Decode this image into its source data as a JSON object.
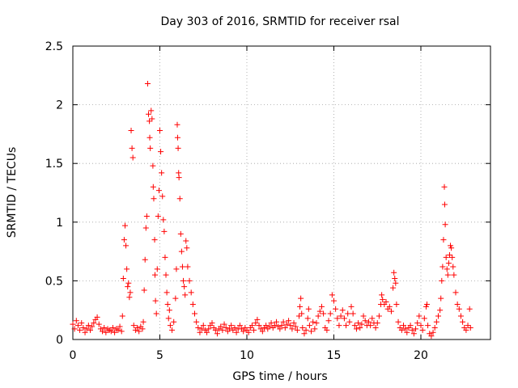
{
  "chart_data": {
    "type": "scatter",
    "title": "Day 303 of 2016, SRMTID for receiver rsal",
    "xlabel": "GPS time / hours",
    "ylabel": "SRMTID / TECUs",
    "xlim": [
      0,
      24
    ],
    "ylim": [
      0,
      2.5
    ],
    "grid": true,
    "marker": "+",
    "color": "#ff0000",
    "x_ticks": [
      0,
      5,
      10,
      15,
      20
    ],
    "x_tick_labels": [
      "0",
      "5",
      "10",
      "15",
      "20"
    ],
    "y_ticks": [
      0,
      0.5,
      1,
      1.5,
      2,
      2.5
    ],
    "y_tick_labels": [
      "0",
      "0.5",
      "1",
      "1.5",
      "2",
      "2.5"
    ],
    "series": [
      {
        "name": "SRMTID",
        "points": [
          [
            0.0,
            0.13
          ],
          [
            0.1,
            0.09
          ],
          [
            0.2,
            0.16
          ],
          [
            0.3,
            0.12
          ],
          [
            0.4,
            0.08
          ],
          [
            0.5,
            0.14
          ],
          [
            0.6,
            0.1
          ],
          [
            0.7,
            0.06
          ],
          [
            0.8,
            0.09
          ],
          [
            0.9,
            0.12
          ],
          [
            1.0,
            0.08
          ],
          [
            1.1,
            0.11
          ],
          [
            1.2,
            0.14
          ],
          [
            1.3,
            0.17
          ],
          [
            1.4,
            0.19
          ],
          [
            1.5,
            0.13
          ],
          [
            1.6,
            0.09
          ],
          [
            1.7,
            0.07
          ],
          [
            1.8,
            0.1
          ],
          [
            1.9,
            0.06
          ],
          [
            2.0,
            0.09
          ],
          [
            2.1,
            0.08
          ],
          [
            2.2,
            0.07
          ],
          [
            2.3,
            0.1
          ],
          [
            2.4,
            0.06
          ],
          [
            2.5,
            0.09
          ],
          [
            2.6,
            0.08
          ],
          [
            2.7,
            0.11
          ],
          [
            2.8,
            0.07
          ],
          [
            2.85,
            0.2
          ],
          [
            2.9,
            0.52
          ],
          [
            2.95,
            0.85
          ],
          [
            3.0,
            0.97
          ],
          [
            3.05,
            0.8
          ],
          [
            3.1,
            0.6
          ],
          [
            3.15,
            0.45
          ],
          [
            3.2,
            0.48
          ],
          [
            3.25,
            0.36
          ],
          [
            3.3,
            0.4
          ],
          [
            3.35,
            1.78
          ],
          [
            3.4,
            1.63
          ],
          [
            3.45,
            1.55
          ],
          [
            3.5,
            0.12
          ],
          [
            3.6,
            0.08
          ],
          [
            3.7,
            0.1
          ],
          [
            3.8,
            0.07
          ],
          [
            3.9,
            0.11
          ],
          [
            4.0,
            0.09
          ],
          [
            4.05,
            0.15
          ],
          [
            4.1,
            0.42
          ],
          [
            4.15,
            0.68
          ],
          [
            4.2,
            0.95
          ],
          [
            4.25,
            1.05
          ],
          [
            4.3,
            2.18
          ],
          [
            4.35,
            1.92
          ],
          [
            4.4,
            1.86
          ],
          [
            4.42,
            1.72
          ],
          [
            4.45,
            1.63
          ],
          [
            4.5,
            1.95
          ],
          [
            4.55,
            1.88
          ],
          [
            4.6,
            1.48
          ],
          [
            4.62,
            1.3
          ],
          [
            4.65,
            1.2
          ],
          [
            4.7,
            0.85
          ],
          [
            4.72,
            0.55
          ],
          [
            4.75,
            0.33
          ],
          [
            4.8,
            0.22
          ],
          [
            4.85,
            0.6
          ],
          [
            4.9,
            1.05
          ],
          [
            4.95,
            1.27
          ],
          [
            5.0,
            1.78
          ],
          [
            5.05,
            1.6
          ],
          [
            5.1,
            1.42
          ],
          [
            5.15,
            1.22
          ],
          [
            5.2,
            1.02
          ],
          [
            5.25,
            0.92
          ],
          [
            5.3,
            0.7
          ],
          [
            5.35,
            0.55
          ],
          [
            5.4,
            0.4
          ],
          [
            5.45,
            0.3
          ],
          [
            5.5,
            0.18
          ],
          [
            5.55,
            0.25
          ],
          [
            5.6,
            0.12
          ],
          [
            5.7,
            0.08
          ],
          [
            5.8,
            0.15
          ],
          [
            5.9,
            0.35
          ],
          [
            5.95,
            0.6
          ],
          [
            6.0,
            1.83
          ],
          [
            6.02,
            1.72
          ],
          [
            6.05,
            1.63
          ],
          [
            6.08,
            1.42
          ],
          [
            6.1,
            1.38
          ],
          [
            6.15,
            1.2
          ],
          [
            6.2,
            0.9
          ],
          [
            6.25,
            0.75
          ],
          [
            6.3,
            0.62
          ],
          [
            6.35,
            0.5
          ],
          [
            6.4,
            0.45
          ],
          [
            6.45,
            0.38
          ],
          [
            6.5,
            0.84
          ],
          [
            6.55,
            0.78
          ],
          [
            6.6,
            0.62
          ],
          [
            6.7,
            0.5
          ],
          [
            6.8,
            0.4
          ],
          [
            6.9,
            0.3
          ],
          [
            7.0,
            0.22
          ],
          [
            7.1,
            0.15
          ],
          [
            7.2,
            0.1
          ],
          [
            7.3,
            0.06
          ],
          [
            7.4,
            0.09
          ],
          [
            7.5,
            0.12
          ],
          [
            7.6,
            0.08
          ],
          [
            7.7,
            0.06
          ],
          [
            7.8,
            0.09
          ],
          [
            7.9,
            0.12
          ],
          [
            8.0,
            0.14
          ],
          [
            8.1,
            0.1
          ],
          [
            8.2,
            0.08
          ],
          [
            8.3,
            0.05
          ],
          [
            8.4,
            0.09
          ],
          [
            8.5,
            0.11
          ],
          [
            8.6,
            0.08
          ],
          [
            8.7,
            0.13
          ],
          [
            8.8,
            0.1
          ],
          [
            8.9,
            0.07
          ],
          [
            9.0,
            0.09
          ],
          [
            9.1,
            0.12
          ],
          [
            9.2,
            0.08
          ],
          [
            9.3,
            0.1
          ],
          [
            9.4,
            0.06
          ],
          [
            9.5,
            0.09
          ],
          [
            9.6,
            0.12
          ],
          [
            9.7,
            0.09
          ],
          [
            9.8,
            0.07
          ],
          [
            9.9,
            0.1
          ],
          [
            10.0,
            0.08
          ],
          [
            10.1,
            0.06
          ],
          [
            10.2,
            0.1
          ],
          [
            10.3,
            0.12
          ],
          [
            10.4,
            0.08
          ],
          [
            10.5,
            0.14
          ],
          [
            10.6,
            0.17
          ],
          [
            10.7,
            0.12
          ],
          [
            10.8,
            0.09
          ],
          [
            10.9,
            0.07
          ],
          [
            11.0,
            0.1
          ],
          [
            11.1,
            0.12
          ],
          [
            11.2,
            0.09
          ],
          [
            11.3,
            0.11
          ],
          [
            11.4,
            0.14
          ],
          [
            11.5,
            0.1
          ],
          [
            11.6,
            0.12
          ],
          [
            11.7,
            0.15
          ],
          [
            11.8,
            0.11
          ],
          [
            11.9,
            0.09
          ],
          [
            12.0,
            0.12
          ],
          [
            12.1,
            0.15
          ],
          [
            12.2,
            0.1
          ],
          [
            12.3,
            0.13
          ],
          [
            12.4,
            0.16
          ],
          [
            12.5,
            0.12
          ],
          [
            12.6,
            0.09
          ],
          [
            12.7,
            0.14
          ],
          [
            12.8,
            0.11
          ],
          [
            12.9,
            0.08
          ],
          [
            13.0,
            0.2
          ],
          [
            13.05,
            0.28
          ],
          [
            13.1,
            0.35
          ],
          [
            13.15,
            0.22
          ],
          [
            13.2,
            0.1
          ],
          [
            13.3,
            0.05
          ],
          [
            13.4,
            0.08
          ],
          [
            13.5,
            0.18
          ],
          [
            13.55,
            0.26
          ],
          [
            13.6,
            0.12
          ],
          [
            13.7,
            0.07
          ],
          [
            13.8,
            0.15
          ],
          [
            13.9,
            0.09
          ],
          [
            14.0,
            0.14
          ],
          [
            14.1,
            0.2
          ],
          [
            14.2,
            0.24
          ],
          [
            14.3,
            0.28
          ],
          [
            14.4,
            0.22
          ],
          [
            14.5,
            0.1
          ],
          [
            14.6,
            0.08
          ],
          [
            14.7,
            0.16
          ],
          [
            14.8,
            0.22
          ],
          [
            14.9,
            0.38
          ],
          [
            15.0,
            0.33
          ],
          [
            15.1,
            0.26
          ],
          [
            15.2,
            0.18
          ],
          [
            15.3,
            0.12
          ],
          [
            15.4,
            0.2
          ],
          [
            15.5,
            0.25
          ],
          [
            15.6,
            0.18
          ],
          [
            15.7,
            0.12
          ],
          [
            15.8,
            0.22
          ],
          [
            15.9,
            0.15
          ],
          [
            16.0,
            0.28
          ],
          [
            16.1,
            0.22
          ],
          [
            16.2,
            0.12
          ],
          [
            16.3,
            0.09
          ],
          [
            16.4,
            0.14
          ],
          [
            16.5,
            0.1
          ],
          [
            16.6,
            0.13
          ],
          [
            16.7,
            0.2
          ],
          [
            16.8,
            0.16
          ],
          [
            16.9,
            0.12
          ],
          [
            17.0,
            0.15
          ],
          [
            17.1,
            0.12
          ],
          [
            17.2,
            0.18
          ],
          [
            17.3,
            0.14
          ],
          [
            17.4,
            0.1
          ],
          [
            17.5,
            0.14
          ],
          [
            17.6,
            0.2
          ],
          [
            17.7,
            0.3
          ],
          [
            17.75,
            0.38
          ],
          [
            17.8,
            0.34
          ],
          [
            17.9,
            0.3
          ],
          [
            18.0,
            0.32
          ],
          [
            18.1,
            0.26
          ],
          [
            18.2,
            0.28
          ],
          [
            18.3,
            0.24
          ],
          [
            18.4,
            0.44
          ],
          [
            18.45,
            0.57
          ],
          [
            18.5,
            0.52
          ],
          [
            18.55,
            0.48
          ],
          [
            18.6,
            0.3
          ],
          [
            18.7,
            0.15
          ],
          [
            18.8,
            0.1
          ],
          [
            18.9,
            0.08
          ],
          [
            19.0,
            0.12
          ],
          [
            19.1,
            0.09
          ],
          [
            19.2,
            0.06
          ],
          [
            19.3,
            0.1
          ],
          [
            19.4,
            0.12
          ],
          [
            19.5,
            0.08
          ],
          [
            19.6,
            0.05
          ],
          [
            19.7,
            0.09
          ],
          [
            19.8,
            0.14
          ],
          [
            19.9,
            0.2
          ],
          [
            20.0,
            0.12
          ],
          [
            20.1,
            0.08
          ],
          [
            20.2,
            0.18
          ],
          [
            20.3,
            0.28
          ],
          [
            20.35,
            0.3
          ],
          [
            20.4,
            0.12
          ],
          [
            20.5,
            0.05
          ],
          [
            20.6,
            0.03
          ],
          [
            20.7,
            0.06
          ],
          [
            20.8,
            0.1
          ],
          [
            20.9,
            0.15
          ],
          [
            21.0,
            0.2
          ],
          [
            21.1,
            0.25
          ],
          [
            21.15,
            0.35
          ],
          [
            21.2,
            0.5
          ],
          [
            21.25,
            0.62
          ],
          [
            21.3,
            0.85
          ],
          [
            21.35,
            1.3
          ],
          [
            21.37,
            1.15
          ],
          [
            21.4,
            0.98
          ],
          [
            21.45,
            0.7
          ],
          [
            21.5,
            0.6
          ],
          [
            21.55,
            0.55
          ],
          [
            21.6,
            0.65
          ],
          [
            21.65,
            0.72
          ],
          [
            21.7,
            0.8
          ],
          [
            21.75,
            0.78
          ],
          [
            21.8,
            0.7
          ],
          [
            21.85,
            0.62
          ],
          [
            21.9,
            0.55
          ],
          [
            22.0,
            0.4
          ],
          [
            22.1,
            0.3
          ],
          [
            22.2,
            0.26
          ],
          [
            22.3,
            0.2
          ],
          [
            22.4,
            0.15
          ],
          [
            22.5,
            0.1
          ],
          [
            22.6,
            0.08
          ],
          [
            22.7,
            0.12
          ],
          [
            22.8,
            0.26
          ],
          [
            22.85,
            0.1
          ]
        ]
      }
    ]
  }
}
